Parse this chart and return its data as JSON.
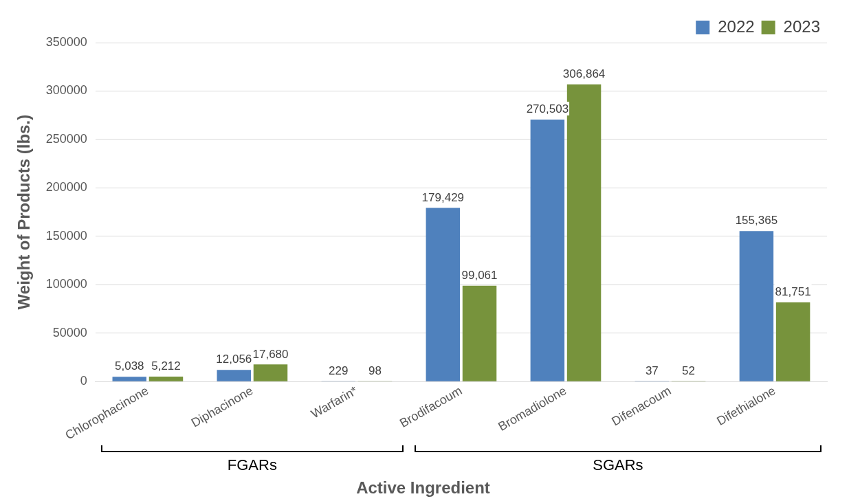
{
  "chart_data": {
    "type": "bar",
    "xlabel": "Active Ingredient",
    "ylabel": "Weight of Products (lbs.)",
    "categories": [
      "Chlorophacinone",
      "Diphacinone",
      "Warfarin*",
      "Brodifacoum",
      "Bromadiolone",
      "Difenacoum",
      "Difethialone"
    ],
    "series": [
      {
        "name": "2022",
        "color": "#4f81bd",
        "values": [
          5038,
          12056,
          229,
          179429,
          270503,
          37,
          155365
        ],
        "value_labels": [
          "5,038",
          "12,056",
          "229",
          "179,429",
          "270,503",
          "37",
          "155,365"
        ]
      },
      {
        "name": "2023",
        "color": "#77933c",
        "values": [
          5212,
          17680,
          98,
          99061,
          306864,
          52,
          81751
        ],
        "value_labels": [
          "5,212",
          "17,680",
          "98",
          "99,061",
          "306,864",
          "52",
          "81,751"
        ]
      }
    ],
    "ylim": [
      0,
      350000
    ],
    "yticks": [
      0,
      50000,
      100000,
      150000,
      200000,
      250000,
      300000,
      350000
    ],
    "grid": "y",
    "legend": "top right",
    "annotations": [
      "FGARs",
      "SGARs"
    ]
  }
}
